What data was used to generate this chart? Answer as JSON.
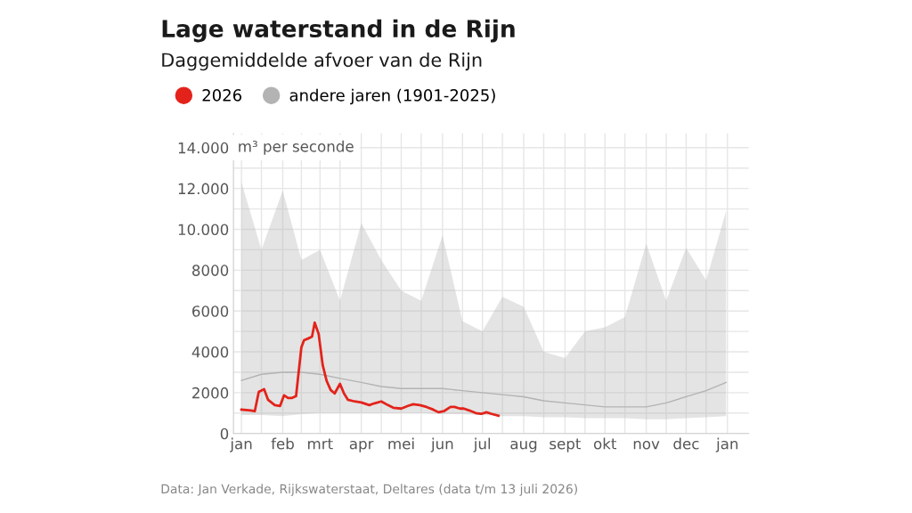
{
  "chart_data": {
    "type": "line",
    "title": "Lage waterstand in de Rijn",
    "subtitle": "Daggemiddelde afvoer van de Rijn",
    "ylabel": "m³ per seconde",
    "annotations": [
      "Data: Jan Verkade, Rijkswaterstaat, Deltares (data t/m 13 juli 2026)"
    ],
    "series": [
      {
        "name": "andere jaren (1901-2025)",
        "color": "#b3b3b3",
        "x": [
          "2026-01-01",
          "2026-01-16",
          "2026-02-01",
          "2026-02-15",
          "2026-03-01",
          "2026-03-16",
          "2026-04-01",
          "2026-04-16",
          "2026-05-01",
          "2026-05-16",
          "2026-06-01",
          "2026-06-16",
          "2026-07-01",
          "2026-07-16",
          "2026-08-01",
          "2026-08-16",
          "2026-09-01",
          "2026-09-16",
          "2026-10-01",
          "2026-10-16",
          "2026-11-01",
          "2026-11-16",
          "2026-12-01",
          "2026-12-16",
          "2026-12-31"
        ],
        "values": [
          2600,
          2900,
          3000,
          3000,
          2900,
          2700,
          2500,
          2300,
          2200,
          2200,
          2200,
          2100,
          2000,
          1900,
          1800,
          1600,
          1500,
          1400,
          1300,
          1300,
          1300,
          1500,
          1800,
          2100,
          2500
        ],
        "lower": [
          900,
          900,
          850,
          950,
          1000,
          1000,
          1000,
          1000,
          1000,
          1000,
          950,
          950,
          900,
          850,
          850,
          800,
          800,
          750,
          750,
          750,
          700,
          700,
          750,
          800,
          850
        ],
        "upper": [
          12300,
          9000,
          11900,
          8500,
          9000,
          6500,
          10300,
          8500,
          7000,
          6500,
          9700,
          5500,
          5000,
          6700,
          6200,
          4000,
          3700,
          5000,
          5200,
          5700,
          9300,
          6500,
          9100,
          7500,
          10900
        ]
      },
      {
        "name": "2026",
        "color": "#e3231b",
        "x": [
          "2026-01-01",
          "2026-01-08",
          "2026-01-11",
          "2026-01-14",
          "2026-01-18",
          "2026-01-21",
          "2026-01-26",
          "2026-01-30",
          "2026-02-02",
          "2026-02-05",
          "2026-02-08",
          "2026-02-11",
          "2026-02-15",
          "2026-02-17",
          "2026-02-20",
          "2026-02-23",
          "2026-02-25",
          "2026-02-28",
          "2026-03-03",
          "2026-03-06",
          "2026-03-09",
          "2026-03-12",
          "2026-03-16",
          "2026-03-19",
          "2026-03-22",
          "2026-03-27",
          "2026-04-01",
          "2026-04-07",
          "2026-04-11",
          "2026-04-16",
          "2026-04-21",
          "2026-04-25",
          "2026-05-01",
          "2026-05-06",
          "2026-05-10",
          "2026-05-15",
          "2026-05-20",
          "2026-05-25",
          "2026-05-29",
          "2026-06-02",
          "2026-06-07",
          "2026-06-10",
          "2026-06-14",
          "2026-06-17",
          "2026-06-21",
          "2026-06-26",
          "2026-06-30",
          "2026-07-04",
          "2026-07-08",
          "2026-07-13"
        ],
        "values": [
          1170,
          1130,
          1090,
          2040,
          2170,
          1650,
          1390,
          1350,
          1870,
          1740,
          1740,
          1830,
          4220,
          4570,
          4650,
          4740,
          5430,
          4870,
          3350,
          2570,
          2130,
          1960,
          2430,
          1960,
          1650,
          1570,
          1520,
          1390,
          1480,
          1570,
          1390,
          1260,
          1220,
          1350,
          1430,
          1390,
          1300,
          1170,
          1040,
          1090,
          1300,
          1300,
          1220,
          1220,
          1130,
          1000,
          960,
          1040,
          960,
          870
        ]
      }
    ],
    "xlim": [
      "2025-12-26",
      "2027-01-17"
    ],
    "ylim": [
      0,
      14700
    ],
    "xticks": [
      {
        "value": "2026-01-01",
        "label": "jan"
      },
      {
        "value": "2026-01-16",
        "label": null
      },
      {
        "value": "2026-02-01",
        "label": "feb"
      },
      {
        "value": "2026-02-15",
        "label": null
      },
      {
        "value": "2026-03-01",
        "label": "mrt"
      },
      {
        "value": "2026-03-16",
        "label": null
      },
      {
        "value": "2026-04-01",
        "label": "apr"
      },
      {
        "value": "2026-04-16",
        "label": null
      },
      {
        "value": "2026-05-01",
        "label": "mei"
      },
      {
        "value": "2026-05-16",
        "label": null
      },
      {
        "value": "2026-06-01",
        "label": "jun"
      },
      {
        "value": "2026-06-16",
        "label": null
      },
      {
        "value": "2026-07-01",
        "label": "jul"
      },
      {
        "value": "2026-07-16",
        "label": null
      },
      {
        "value": "2026-08-01",
        "label": "aug"
      },
      {
        "value": "2026-08-16",
        "label": null
      },
      {
        "value": "2026-09-01",
        "label": "sept"
      },
      {
        "value": "2026-09-16",
        "label": null
      },
      {
        "value": "2026-10-01",
        "label": "okt"
      },
      {
        "value": "2026-10-16",
        "label": null
      },
      {
        "value": "2026-11-01",
        "label": "nov"
      },
      {
        "value": "2026-11-16",
        "label": null
      },
      {
        "value": "2026-12-01",
        "label": "dec"
      },
      {
        "value": "2026-12-16",
        "label": null
      },
      {
        "value": "2027-01-01",
        "label": "jan"
      }
    ],
    "yticks": [
      0,
      {
        "value": 1000,
        "label": null
      },
      2000,
      {
        "value": 3000,
        "label": null
      },
      4000,
      {
        "value": 5000,
        "label": null
      },
      6000,
      {
        "value": 7000,
        "label": null
      },
      8000,
      {
        "value": 9000,
        "label": null
      },
      {
        "value": 10000,
        "label": "10.000"
      },
      {
        "value": 11000,
        "label": null
      },
      {
        "value": 12000,
        "label": "12.000"
      },
      {
        "value": 13000,
        "label": null
      },
      {
        "value": 14000,
        "label": "14.000"
      }
    ],
    "grid": true,
    "legend": "top",
    "marker": "none",
    "line_style": "solid"
  }
}
